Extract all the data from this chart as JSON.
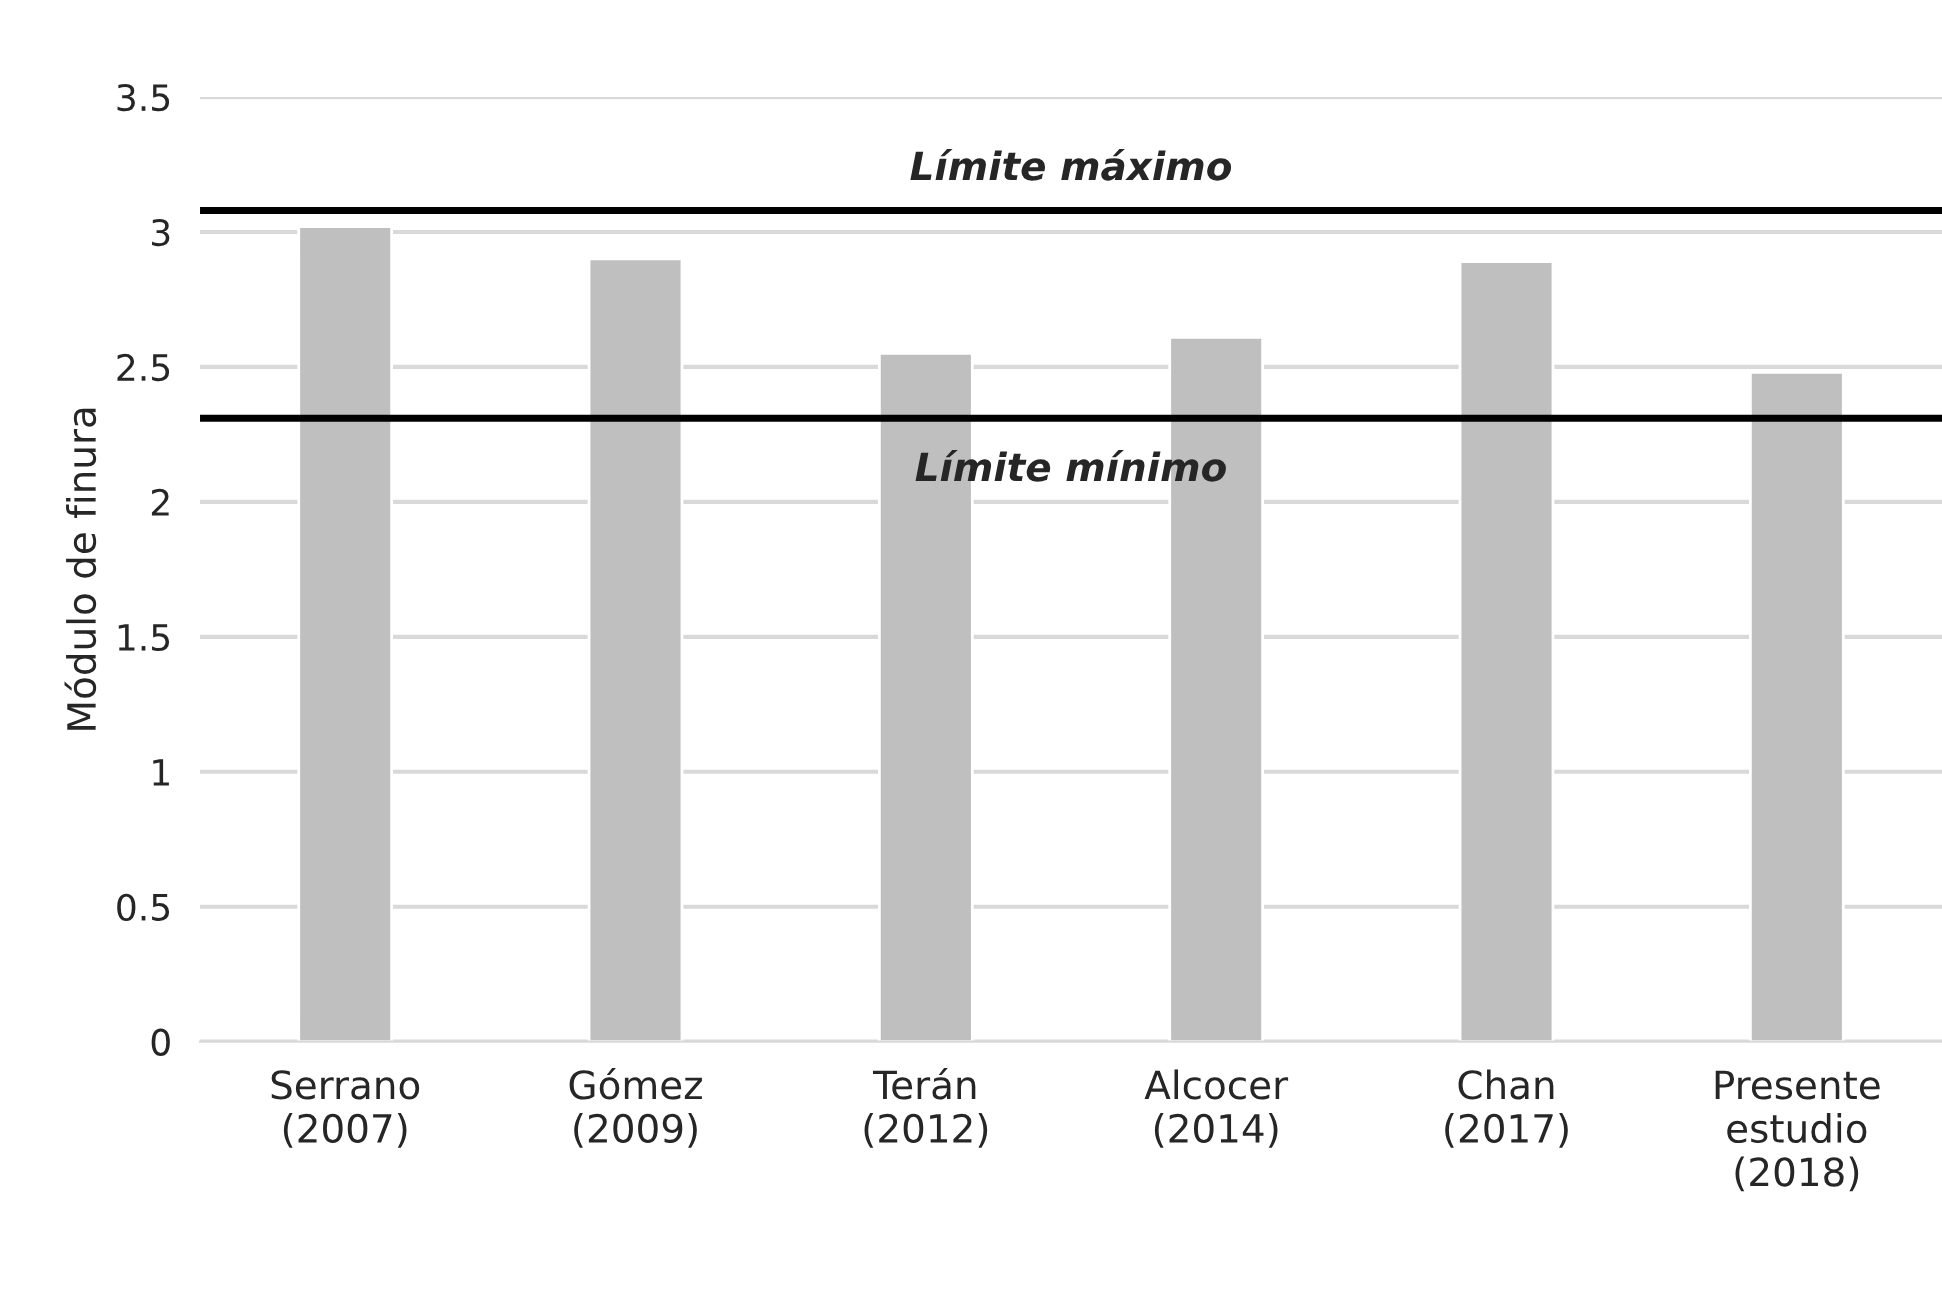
{
  "chart_data": {
    "type": "bar",
    "ylabel": "Módulo de finura",
    "categories": [
      "Serrano\n(2007)",
      "Gómez\n(2009)",
      "Terán\n(2012)",
      "Alcocer\n(2014)",
      "Chan\n(2017)",
      "Presente\nestudio\n(2018)"
    ],
    "values": [
      3.02,
      2.9,
      2.55,
      2.61,
      2.89,
      2.48
    ],
    "color": "#bfbfbf",
    "ylim": [
      0,
      3.5
    ],
    "yticks": [
      0,
      0.5,
      1,
      1.5,
      2,
      2.5,
      3,
      3.5
    ],
    "grid": "y",
    "ref_lines": [
      {
        "axis": "y",
        "value": 3.08,
        "label": "Límite máximo",
        "color": "#000000"
      },
      {
        "axis": "y",
        "value": 2.31,
        "label": "Límite mínimo",
        "color": "#000000"
      }
    ]
  }
}
